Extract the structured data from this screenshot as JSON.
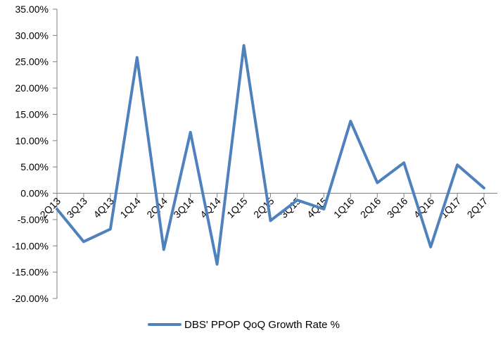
{
  "chart_data": {
    "type": "line",
    "title": "",
    "xlabel": "",
    "ylabel": "",
    "categories": [
      "2Q13",
      "3Q13",
      "4Q13",
      "1Q14",
      "2Q14",
      "3Q14",
      "4Q14",
      "1Q15",
      "2Q15",
      "3Q15",
      "4Q15",
      "1Q16",
      "2Q16",
      "3Q16",
      "4Q16",
      "1Q17",
      "2Q17"
    ],
    "series": [
      {
        "name": "DBS' PPOP QoQ Growth Rate %",
        "color": "#4f81bd",
        "values": [
          -3.0,
          -9.2,
          -6.8,
          25.8,
          -10.7,
          11.6,
          -13.5,
          28.1,
          -5.2,
          -1.3,
          -3.0,
          13.7,
          2.0,
          5.8,
          -10.2,
          5.4,
          1.0
        ]
      }
    ],
    "ylim": [
      -20,
      35
    ],
    "ytick_step": 5,
    "ytick_labels": [
      "35.00%",
      "30.00%",
      "25.00%",
      "20.00%",
      "15.00%",
      "10.00%",
      "5.00%",
      "0.00%",
      "-5.00%",
      "-10.00%",
      "-15.00%",
      "-20.00%"
    ],
    "grid": false,
    "legend": "bottom"
  }
}
